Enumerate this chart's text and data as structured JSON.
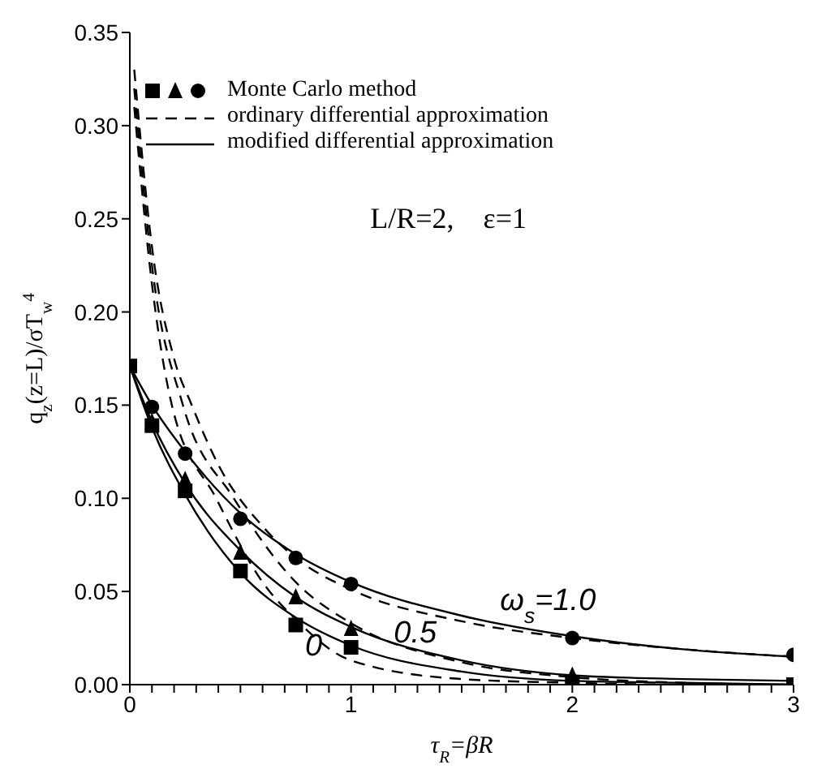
{
  "chart_data": {
    "type": "line",
    "xlabel": "τ$_{R}$=βR",
    "ylabel": "q$_{z}$(z=L)/σT$_{w}$$^{4}$",
    "xlim": [
      0,
      3
    ],
    "ylim": [
      0,
      0.35
    ],
    "xticks": [
      0,
      {
        "value": 0.1,
        "label": null
      },
      {
        "value": 0.2,
        "label": null
      },
      {
        "value": 0.3,
        "label": null
      },
      {
        "value": 0.4,
        "label": null
      },
      {
        "value": 0.5,
        "label": null
      },
      {
        "value": 0.6,
        "label": null
      },
      {
        "value": 0.7,
        "label": null
      },
      {
        "value": 0.8,
        "label": null
      },
      {
        "value": 0.9,
        "label": null
      },
      1,
      {
        "value": 1.1,
        "label": null
      },
      {
        "value": 1.2,
        "label": null
      },
      {
        "value": 1.3,
        "label": null
      },
      {
        "value": 1.4,
        "label": null
      },
      {
        "value": 1.5,
        "label": null
      },
      {
        "value": 1.6,
        "label": null
      },
      {
        "value": 1.7,
        "label": null
      },
      {
        "value": 1.8,
        "label": null
      },
      {
        "value": 1.9,
        "label": null
      },
      2,
      {
        "value": 2.1,
        "label": null
      },
      {
        "value": 2.2,
        "label": null
      },
      {
        "value": 2.3,
        "label": null
      },
      {
        "value": 2.4,
        "label": null
      },
      {
        "value": 2.5,
        "label": null
      },
      {
        "value": 2.6,
        "label": null
      },
      {
        "value": 2.7,
        "label": null
      },
      {
        "value": 2.8,
        "label": null
      },
      {
        "value": 2.9,
        "label": null
      },
      3
    ],
    "yticks": [
      {
        "value": 0,
        "label": "0.00"
      },
      {
        "value": 0.05,
        "label": "0.05"
      },
      {
        "value": 0.1,
        "label": "0.10"
      },
      {
        "value": 0.15,
        "label": "0.15"
      },
      {
        "value": 0.2,
        "label": "0.20"
      },
      {
        "value": 0.25,
        "label": "0.25"
      },
      {
        "value": 0.3,
        "label": "0.30"
      },
      {
        "value": 0.35,
        "label": "0.35"
      }
    ],
    "grid": false,
    "legend": "top left",
    "annotations": [
      "L/R=2,    ε=1",
      "ω$_{s}$=1.0",
      "0.5",
      "0"
    ],
    "series": [
      {
        "type": "scatter",
        "marker": "square",
        "color": "#000000",
        "x": [
          0,
          0.1,
          0.25,
          0.5,
          0.75,
          1,
          2,
          3
        ],
        "values": [
          0.171,
          0.139,
          0.104,
          0.061,
          0.032,
          0.02,
          0.001,
          0
        ]
      },
      {
        "type": "scatter",
        "marker": "triangle",
        "color": "#000000",
        "x": [
          0.1,
          0.25,
          0.5,
          0.75,
          1,
          2
        ],
        "values": [
          0.141,
          0.11,
          0.071,
          0.047,
          0.03,
          0.005
        ]
      },
      {
        "type": "scatter",
        "name": "Monte Carlo method",
        "marker": "circle",
        "color": "#000000",
        "x": [
          0.1,
          0.25,
          0.5,
          0.75,
          1,
          2,
          3
        ],
        "values": [
          0.149,
          0.124,
          0.089,
          0.068,
          0.054,
          0.025,
          0.016
        ]
      },
      {
        "name": "ordinary differential approximation",
        "line_style": "dashed",
        "marker": "none",
        "color": "#000000",
        "x": [
          0.02,
          0.1,
          0.19,
          0.39,
          0.6,
          0.75,
          1,
          1.5,
          2,
          2.5,
          3
        ],
        "values": [
          0.31,
          0.215,
          0.15,
          0.1,
          0.055,
          0.035,
          0.013,
          0.003,
          0.001,
          0,
          0
        ]
      },
      {
        "line_style": "dashed",
        "marker": "none",
        "color": "#000000",
        "x": [
          0.02,
          0.1,
          0.24,
          0.47,
          0.75,
          1,
          1.5,
          2,
          2.5,
          3
        ],
        "values": [
          0.32,
          0.225,
          0.15,
          0.1,
          0.055,
          0.033,
          0.012,
          0.004,
          0.001,
          0
        ]
      },
      {
        "line_style": "dashed",
        "marker": "none",
        "color": "#000000",
        "x": [
          0.02,
          0.1,
          0.2,
          0.28,
          0.4,
          0.6,
          0.75,
          1,
          1.5,
          2,
          2.5,
          3
        ],
        "values": [
          0.33,
          0.235,
          0.175,
          0.15,
          0.118,
          0.085,
          0.068,
          0.051,
          0.034,
          0.025,
          0.019,
          0.015
        ]
      },
      {
        "name": "modified differential approximation",
        "line_style": "solid",
        "marker": "none",
        "color": "#000000",
        "x": [
          0,
          0.1,
          0.25,
          0.5,
          0.75,
          1,
          1.5,
          2,
          2.5,
          3
        ],
        "values": [
          0.171,
          0.138,
          0.102,
          0.06,
          0.036,
          0.021,
          0.007,
          0.002,
          0.001,
          0
        ]
      },
      {
        "line_style": "solid",
        "marker": "none",
        "color": "#000000",
        "x": [
          0,
          0.1,
          0.25,
          0.5,
          0.75,
          1,
          1.5,
          2,
          2.5,
          3
        ],
        "values": [
          0.171,
          0.141,
          0.108,
          0.072,
          0.047,
          0.031,
          0.013,
          0.005,
          0.003,
          0.002
        ]
      },
      {
        "line_style": "solid",
        "marker": "none",
        "color": "#000000",
        "x": [
          0,
          0.1,
          0.25,
          0.5,
          0.75,
          1,
          1.5,
          2,
          2.5,
          3
        ],
        "values": [
          0.171,
          0.15,
          0.125,
          0.092,
          0.07,
          0.055,
          0.037,
          0.026,
          0.019,
          0.015
        ]
      }
    ]
  }
}
